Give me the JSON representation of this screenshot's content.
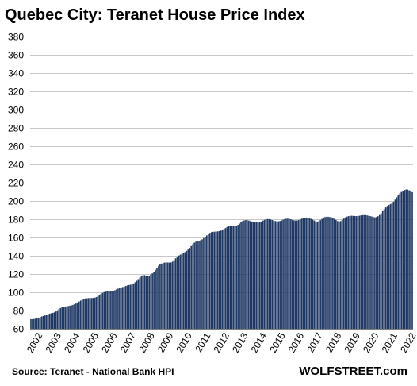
{
  "chart_data": {
    "type": "bar",
    "title": "Quebec City: Teranet House Price Index",
    "subtitle": "",
    "xlabel": "",
    "ylabel": "",
    "frequency": "monthly",
    "ylim": [
      60,
      380
    ],
    "y_ticks": [
      60,
      80,
      100,
      120,
      140,
      160,
      180,
      200,
      220,
      240,
      260,
      280,
      300,
      320,
      340,
      360,
      380
    ],
    "x_tick_labels": [
      "2002",
      "2003",
      "2004",
      "2005",
      "2006",
      "2007",
      "2008",
      "2009",
      "2010",
      "2011",
      "2012",
      "2013",
      "2014",
      "2015",
      "2016",
      "2017",
      "2018",
      "2019",
      "2020",
      "2021",
      "2022"
    ],
    "grid": true,
    "legend": "none",
    "bar_color": "#1f3864",
    "series": [
      {
        "values": [
          70.5,
          70.5,
          70.7,
          71.0,
          71.5,
          72.0,
          72.8,
          73.5,
          74.0,
          74.6,
          75.3,
          75.9,
          76.5,
          77.0,
          77.4,
          78.0,
          79.0,
          80.2,
          81.5,
          82.7,
          83.4,
          83.8,
          84.1,
          84.5,
          84.9,
          85.3,
          85.7,
          86.2,
          86.9,
          87.7,
          88.7,
          89.9,
          91.0,
          92.0,
          92.8,
          93.2,
          93.4,
          93.6,
          93.7,
          93.7,
          93.8,
          94.0,
          94.7,
          95.8,
          97.0,
          98.2,
          99.3,
          100.2,
          100.7,
          101.0,
          101.3,
          101.4,
          101.5,
          101.7,
          102.3,
          103.2,
          104.0,
          104.7,
          105.3,
          105.8,
          106.3,
          106.9,
          107.5,
          107.9,
          108.3,
          108.8,
          109.7,
          111.0,
          112.6,
          114.4,
          116.2,
          117.7,
          118.6,
          118.8,
          118.3,
          117.9,
          118.2,
          119.3,
          120.7,
          122.4,
          124.6,
          127.0,
          129.0,
          130.5,
          131.5,
          132.2,
          132.6,
          132.7,
          132.6,
          132.5,
          132.7,
          133.6,
          135.2,
          137.2,
          139.0,
          140.3,
          141.2,
          142.0,
          142.9,
          144.0,
          145.3,
          146.8,
          148.6,
          150.6,
          152.6,
          154.3,
          155.4,
          156.0,
          156.3,
          156.9,
          157.9,
          159.3,
          160.8,
          162.3,
          163.8,
          165.0,
          165.8,
          166.2,
          166.4,
          166.5,
          166.7,
          167.0,
          167.5,
          168.2,
          169.2,
          170.3,
          171.5,
          172.3,
          172.6,
          172.5,
          172.2,
          172.2,
          172.7,
          173.8,
          175.2,
          176.7,
          177.9,
          178.7,
          179.1,
          179.0,
          178.6,
          178.0,
          177.5,
          177.1,
          176.8,
          176.5,
          176.4,
          176.7,
          177.4,
          178.4,
          179.3,
          179.9,
          180.2,
          180.1,
          179.7,
          179.1,
          178.5,
          178.0,
          177.7,
          177.7,
          178.1,
          178.8,
          179.5,
          180.1,
          180.5,
          180.6,
          180.3,
          179.9,
          179.3,
          178.8,
          178.6,
          178.7,
          179.1,
          179.8,
          180.6,
          181.3,
          181.7,
          181.8,
          181.5,
          181.0,
          180.4,
          179.6,
          178.6,
          177.8,
          177.3,
          177.8,
          179.0,
          180.4,
          181.6,
          182.4,
          182.7,
          182.7,
          182.4,
          182.0,
          181.4,
          180.5,
          179.2,
          178.0,
          177.5,
          178.0,
          179.2,
          180.6,
          181.9,
          182.8,
          183.4,
          183.7,
          183.8,
          183.7,
          183.5,
          183.4,
          183.5,
          183.8,
          184.2,
          184.5,
          184.6,
          184.5,
          184.2,
          183.9,
          183.5,
          183.0,
          182.4,
          182.1,
          182.4,
          183.3,
          184.7,
          186.5,
          188.8,
          191.0,
          192.9,
          194.5,
          195.6,
          196.6,
          197.7,
          199.3,
          201.5,
          204.0,
          206.4,
          208.3,
          209.8,
          211.0,
          212.0,
          212.6,
          212.5,
          211.7,
          210.6,
          209.7
        ]
      }
    ]
  },
  "source": "Source: Teranet - National Bank HPI",
  "watermark": "WOLFSTREET.com"
}
